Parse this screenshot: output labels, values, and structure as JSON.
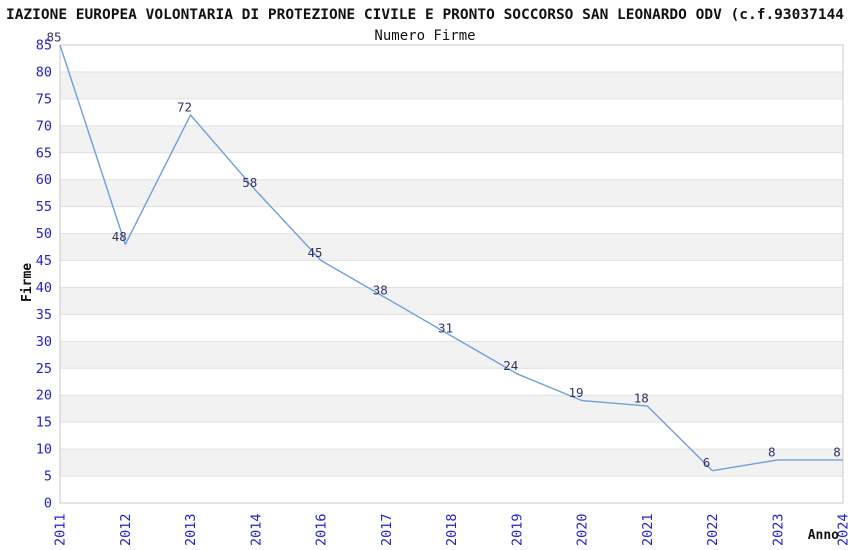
{
  "header": {
    "title": "IAZIONE EUROPEA VOLONTARIA DI PROTEZIONE CIVILE E PRONTO SOCCORSO SAN LEONARDO ODV (c.f.93037144",
    "subtitle": "Numero Firme"
  },
  "chart_data": {
    "type": "line",
    "title": "Numero Firme",
    "categories": [
      "2011",
      "2012",
      "2013",
      "2014",
      "2016",
      "2017",
      "2018",
      "2019",
      "2020",
      "2021",
      "2022",
      "2023",
      "2024"
    ],
    "values": [
      85,
      48,
      72,
      58,
      45,
      38,
      31,
      24,
      19,
      18,
      6,
      8,
      8
    ],
    "xlabel": "Anno",
    "ylabel": "Firme",
    "ylim": [
      0,
      85
    ],
    "ytick_step": 5,
    "grid": "horizontal-only",
    "legend": "none",
    "band_fill_alternating": true,
    "colors": {
      "line": "#6f9fdf",
      "tick_label": "#2222cc",
      "data_label": "#333366",
      "band_gray": "#f2f2f2",
      "band_white": "#ffffff",
      "gridline": "#e0e0e0",
      "plot_border": "#c8c8c8",
      "text": "#111111"
    }
  }
}
